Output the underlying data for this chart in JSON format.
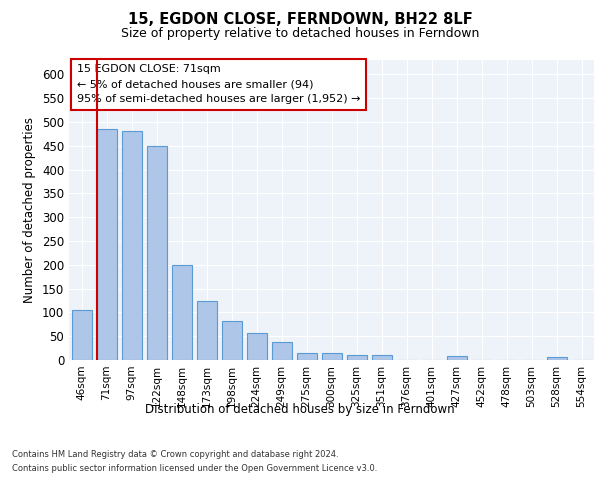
{
  "title": "15, EGDON CLOSE, FERNDOWN, BH22 8LF",
  "subtitle": "Size of property relative to detached houses in Ferndown",
  "xlabel": "Distribution of detached houses by size in Ferndown",
  "ylabel": "Number of detached properties",
  "categories": [
    "46sqm",
    "71sqm",
    "97sqm",
    "122sqm",
    "148sqm",
    "173sqm",
    "198sqm",
    "224sqm",
    "249sqm",
    "275sqm",
    "300sqm",
    "325sqm",
    "351sqm",
    "376sqm",
    "401sqm",
    "427sqm",
    "452sqm",
    "478sqm",
    "503sqm",
    "528sqm",
    "554sqm"
  ],
  "values": [
    105,
    485,
    480,
    450,
    200,
    123,
    82,
    57,
    38,
    15,
    15,
    10,
    10,
    0,
    0,
    8,
    0,
    0,
    0,
    7,
    0
  ],
  "bar_color": "#aec6e8",
  "bar_edge_color": "#5b9bd5",
  "red_line_index": 1,
  "red_line_color": "#cc0000",
  "ylim": [
    0,
    630
  ],
  "yticks": [
    0,
    50,
    100,
    150,
    200,
    250,
    300,
    350,
    400,
    450,
    500,
    550,
    600
  ],
  "annotation_text": "15 EGDON CLOSE: 71sqm\n← 5% of detached houses are smaller (94)\n95% of semi-detached houses are larger (1,952) →",
  "annotation_box_color": "#ffffff",
  "annotation_box_edge_color": "#cc0000",
  "footer_line1": "Contains HM Land Registry data © Crown copyright and database right 2024.",
  "footer_line2": "Contains public sector information licensed under the Open Government Licence v3.0.",
  "bg_color": "#eef3f9",
  "grid_color": "#ffffff",
  "fig_bg_color": "#ffffff"
}
